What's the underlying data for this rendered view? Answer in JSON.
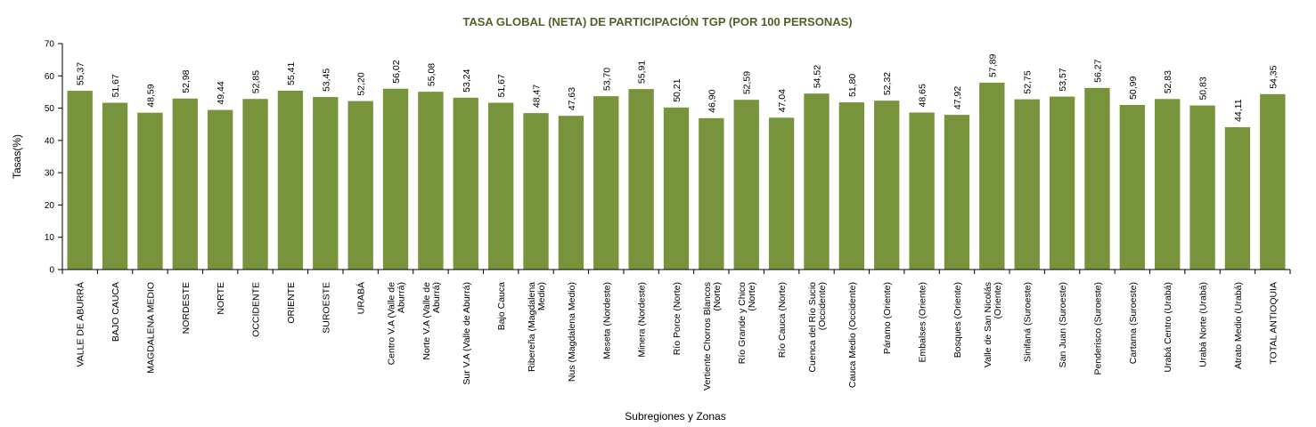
{
  "chart_data": {
    "type": "bar",
    "title": "TASA GLOBAL (NETA) DE PARTICIPACIÓN TGP (POR 100 PERSONAS)",
    "xlabel": "Subregiones y Zonas",
    "ylabel": "Tasas(%)",
    "ylim": [
      0,
      70
    ],
    "yticks": [
      0,
      10,
      20,
      30,
      40,
      50,
      60,
      70
    ],
    "grid": false,
    "legend": "none",
    "bar_color": "#77933c",
    "title_color": "#4f6228",
    "categories": [
      [
        "VALLE DE ABURRÁ"
      ],
      [
        "BAJO CAUCA"
      ],
      [
        "MAGDALENA MEDIO"
      ],
      [
        "NORDESTE"
      ],
      [
        "NORTE"
      ],
      [
        "OCCIDENTE"
      ],
      [
        "ORIENTE"
      ],
      [
        "SUROESTE"
      ],
      [
        "URABÁ"
      ],
      [
        "Centro V.A (Valle de",
        "Aburrá)"
      ],
      [
        "Norte V.A (Valle de",
        "Aburrá)"
      ],
      [
        "Sur  V.A (Valle de Aburrá)"
      ],
      [
        "Bajo Cauca"
      ],
      [
        "Ribereña  (Magdalena",
        "Medio)"
      ],
      [
        "Nus  (Magdalena Medio)"
      ],
      [
        "Meseta  (Nordeste)"
      ],
      [
        "Minera  (Nordeste)"
      ],
      [
        "Río Porce   (Norte)"
      ],
      [
        "Vertiente Chorros Blancos",
        "(Norte)"
      ],
      [
        "Río Grande y Chico",
        "(Norte)"
      ],
      [
        "Río Cauca  (Norte)"
      ],
      [
        "Cuenca del Río Sucio",
        "(Occidente)"
      ],
      [
        "Cauca Medio  (Occidente)"
      ],
      [
        "Páramo  (Oriente)"
      ],
      [
        "Embalses  (Oriente)"
      ],
      [
        "Bosques  (Oriente)"
      ],
      [
        "Valle de San Nicolás",
        "(Oriente)"
      ],
      [
        "Sinifaná  (Suroeste)"
      ],
      [
        "San Juan  (Suroeste)"
      ],
      [
        "Penderisco  (Suroeste)"
      ],
      [
        "Cartama  (Suroeste)"
      ],
      [
        "Urabá Centro  (Urabá)"
      ],
      [
        "Urabá Norte  (Urabá)"
      ],
      [
        "Atrato Medio  (Urabá)"
      ],
      [
        "TOTAL ANTIOQUIA"
      ]
    ],
    "values": [
      55.37,
      51.67,
      48.59,
      52.98,
      49.44,
      52.85,
      55.41,
      53.45,
      52.2,
      56.02,
      55.08,
      53.24,
      51.67,
      48.47,
      47.63,
      53.7,
      55.91,
      50.21,
      46.9,
      52.59,
      47.04,
      54.52,
      51.8,
      52.32,
      48.65,
      47.92,
      57.89,
      52.75,
      53.57,
      56.27,
      50.99,
      52.83,
      50.83,
      44.11,
      54.35
    ],
    "value_labels": [
      "55,37",
      "51,67",
      "48,59",
      "52,98",
      "49,44",
      "52,85",
      "55,41",
      "53,45",
      "52,20",
      "56,02",
      "55,08",
      "53,24",
      "51,67",
      "48,47",
      "47,63",
      "53,70",
      "55,91",
      "50,21",
      "46,90",
      "52,59",
      "47,04",
      "54,52",
      "51,80",
      "52,32",
      "48,65",
      "47,92",
      "57,89",
      "52,75",
      "53,57",
      "56,27",
      "50,99",
      "52,83",
      "50,83",
      "44,11",
      "54,35"
    ]
  }
}
